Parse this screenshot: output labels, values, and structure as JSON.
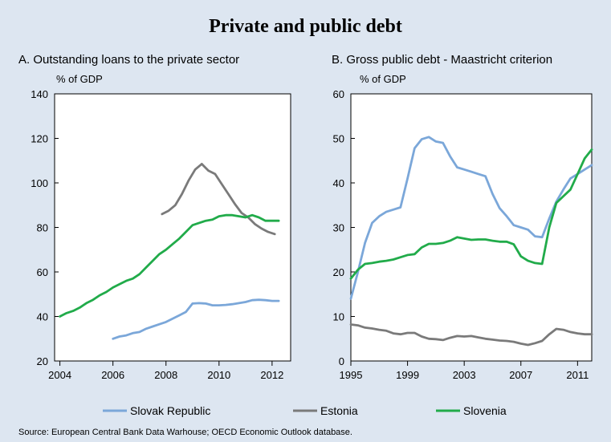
{
  "title": "Private and public debt",
  "source": "Source: European Central Bank Data Warhouse; OECD Economic Outlook database.",
  "colors": {
    "background": "#dde6f1",
    "slovak": "#7ba7d9",
    "estonia": "#7a7a7a",
    "slovenia": "#21ab4a"
  },
  "legend": [
    {
      "label": "Slovak Republic",
      "color": "#7ba7d9"
    },
    {
      "label": "Estonia",
      "color": "#7a7a7a"
    },
    {
      "label": "Slovenia",
      "color": "#21ab4a"
    }
  ],
  "chart_data": [
    {
      "type": "line",
      "title": "A. Outstanding loans to the private sector",
      "ylabel": "% of GDP",
      "xlim": [
        2003.8,
        2012.7
      ],
      "ylim": [
        20,
        140
      ],
      "xticks": [
        2004,
        2006,
        2008,
        2010,
        2012
      ],
      "yticks": [
        20,
        40,
        60,
        80,
        100,
        120,
        140
      ],
      "series": [
        {
          "name": "Slovak Republic",
          "color": "#7ba7d9",
          "points": [
            [
              2006.0,
              30.0
            ],
            [
              2006.25,
              31.0
            ],
            [
              2006.5,
              31.5
            ],
            [
              2006.75,
              32.5
            ],
            [
              2007.0,
              33.0
            ],
            [
              2007.25,
              34.5
            ],
            [
              2007.5,
              35.5
            ],
            [
              2007.75,
              36.5
            ],
            [
              2008.0,
              37.5
            ],
            [
              2008.25,
              39.0
            ],
            [
              2008.5,
              40.5
            ],
            [
              2008.75,
              42.0
            ],
            [
              2009.0,
              45.8
            ],
            [
              2009.25,
              46.0
            ],
            [
              2009.5,
              45.8
            ],
            [
              2009.75,
              45.0
            ],
            [
              2010.0,
              45.0
            ],
            [
              2010.25,
              45.2
            ],
            [
              2010.5,
              45.5
            ],
            [
              2010.75,
              46.0
            ],
            [
              2011.0,
              46.5
            ],
            [
              2011.25,
              47.3
            ],
            [
              2011.5,
              47.5
            ],
            [
              2011.75,
              47.3
            ],
            [
              2012.0,
              47.0
            ],
            [
              2012.25,
              47.0
            ]
          ]
        },
        {
          "name": "Estonia",
          "color": "#7a7a7a",
          "points": [
            [
              2007.85,
              86.0
            ],
            [
              2008.1,
              87.5
            ],
            [
              2008.35,
              90.0
            ],
            [
              2008.6,
              95.0
            ],
            [
              2008.85,
              101.0
            ],
            [
              2009.1,
              106.0
            ],
            [
              2009.35,
              108.5
            ],
            [
              2009.6,
              105.5
            ],
            [
              2009.85,
              104.0
            ],
            [
              2010.1,
              99.5
            ],
            [
              2010.35,
              95.0
            ],
            [
              2010.6,
              90.5
            ],
            [
              2010.85,
              86.5
            ],
            [
              2011.1,
              84.5
            ],
            [
              2011.35,
              81.5
            ],
            [
              2011.6,
              79.5
            ],
            [
              2011.85,
              78.0
            ],
            [
              2012.1,
              77.0
            ]
          ]
        },
        {
          "name": "Slovenia",
          "color": "#21ab4a",
          "points": [
            [
              2004.0,
              40.0
            ],
            [
              2004.25,
              41.5
            ],
            [
              2004.5,
              42.5
            ],
            [
              2004.75,
              44.0
            ],
            [
              2005.0,
              46.0
            ],
            [
              2005.25,
              47.5
            ],
            [
              2005.5,
              49.5
            ],
            [
              2005.75,
              51.0
            ],
            [
              2006.0,
              53.0
            ],
            [
              2006.25,
              54.5
            ],
            [
              2006.5,
              56.0
            ],
            [
              2006.75,
              57.0
            ],
            [
              2007.0,
              59.0
            ],
            [
              2007.25,
              62.0
            ],
            [
              2007.5,
              65.0
            ],
            [
              2007.75,
              68.0
            ],
            [
              2008.0,
              70.0
            ],
            [
              2008.25,
              72.5
            ],
            [
              2008.5,
              75.0
            ],
            [
              2008.75,
              78.0
            ],
            [
              2009.0,
              81.0
            ],
            [
              2009.25,
              82.0
            ],
            [
              2009.5,
              83.0
            ],
            [
              2009.75,
              83.5
            ],
            [
              2010.0,
              85.0
            ],
            [
              2010.25,
              85.5
            ],
            [
              2010.5,
              85.5
            ],
            [
              2010.75,
              85.0
            ],
            [
              2011.0,
              84.5
            ],
            [
              2011.25,
              85.5
            ],
            [
              2011.5,
              84.5
            ],
            [
              2011.75,
              83.0
            ],
            [
              2012.0,
              83.0
            ],
            [
              2012.25,
              83.0
            ]
          ]
        }
      ]
    },
    {
      "type": "line",
      "title": "B. Gross public debt - Maastricht criterion",
      "ylabel": "% of GDP",
      "xlim": [
        1995,
        2012
      ],
      "ylim": [
        0,
        60
      ],
      "xticks": [
        1995,
        1999,
        2003,
        2007,
        2011
      ],
      "yticks": [
        0,
        10,
        20,
        30,
        40,
        50,
        60
      ],
      "series": [
        {
          "name": "Slovak Republic",
          "color": "#7ba7d9",
          "points": [
            [
              1995.0,
              14.0
            ],
            [
              1995.5,
              20.0
            ],
            [
              1996.0,
              26.5
            ],
            [
              1996.5,
              31.0
            ],
            [
              1997.0,
              32.5
            ],
            [
              1997.5,
              33.5
            ],
            [
              1998.0,
              34.0
            ],
            [
              1998.5,
              34.5
            ],
            [
              1999.0,
              41.0
            ],
            [
              1999.5,
              47.8
            ],
            [
              2000.0,
              49.8
            ],
            [
              2000.5,
              50.3
            ],
            [
              2001.0,
              49.3
            ],
            [
              2001.5,
              49.0
            ],
            [
              2002.0,
              46.0
            ],
            [
              2002.5,
              43.5
            ],
            [
              2003.0,
              43.0
            ],
            [
              2003.5,
              42.5
            ],
            [
              2004.0,
              42.0
            ],
            [
              2004.5,
              41.5
            ],
            [
              2005.0,
              37.5
            ],
            [
              2005.5,
              34.3
            ],
            [
              2006.0,
              32.5
            ],
            [
              2006.5,
              30.5
            ],
            [
              2007.0,
              30.0
            ],
            [
              2007.5,
              29.5
            ],
            [
              2008.0,
              28.0
            ],
            [
              2008.5,
              27.8
            ],
            [
              2009.0,
              32.0
            ],
            [
              2009.5,
              35.8
            ],
            [
              2010.0,
              38.5
            ],
            [
              2010.5,
              41.0
            ],
            [
              2011.0,
              42.0
            ],
            [
              2011.5,
              43.0
            ],
            [
              2012.0,
              44.0
            ]
          ]
        },
        {
          "name": "Estonia",
          "color": "#7a7a7a",
          "points": [
            [
              1995.0,
              8.2
            ],
            [
              1995.5,
              8.0
            ],
            [
              1996.0,
              7.5
            ],
            [
              1996.5,
              7.3
            ],
            [
              1997.0,
              7.0
            ],
            [
              1997.5,
              6.8
            ],
            [
              1998.0,
              6.2
            ],
            [
              1998.5,
              6.0
            ],
            [
              1999.0,
              6.3
            ],
            [
              1999.5,
              6.3
            ],
            [
              2000.0,
              5.5
            ],
            [
              2000.5,
              5.0
            ],
            [
              2001.0,
              4.9
            ],
            [
              2001.5,
              4.7
            ],
            [
              2002.0,
              5.2
            ],
            [
              2002.5,
              5.6
            ],
            [
              2003.0,
              5.5
            ],
            [
              2003.5,
              5.6
            ],
            [
              2004.0,
              5.3
            ],
            [
              2004.5,
              5.0
            ],
            [
              2005.0,
              4.8
            ],
            [
              2005.5,
              4.6
            ],
            [
              2006.0,
              4.5
            ],
            [
              2006.5,
              4.3
            ],
            [
              2007.0,
              3.9
            ],
            [
              2007.5,
              3.6
            ],
            [
              2008.0,
              4.0
            ],
            [
              2008.5,
              4.5
            ],
            [
              2009.0,
              6.0
            ],
            [
              2009.5,
              7.2
            ],
            [
              2010.0,
              7.0
            ],
            [
              2010.5,
              6.5
            ],
            [
              2011.0,
              6.2
            ],
            [
              2011.5,
              6.0
            ],
            [
              2012.0,
              6.0
            ]
          ]
        },
        {
          "name": "Slovenia",
          "color": "#21ab4a",
          "points": [
            [
              1995.0,
              18.5
            ],
            [
              1995.5,
              20.5
            ],
            [
              1996.0,
              21.8
            ],
            [
              1996.5,
              22.0
            ],
            [
              1997.0,
              22.3
            ],
            [
              1997.5,
              22.5
            ],
            [
              1998.0,
              22.8
            ],
            [
              1998.5,
              23.3
            ],
            [
              1999.0,
              23.8
            ],
            [
              1999.5,
              24.0
            ],
            [
              2000.0,
              25.5
            ],
            [
              2000.5,
              26.3
            ],
            [
              2001.0,
              26.3
            ],
            [
              2001.5,
              26.5
            ],
            [
              2002.0,
              27.0
            ],
            [
              2002.5,
              27.8
            ],
            [
              2003.0,
              27.5
            ],
            [
              2003.5,
              27.2
            ],
            [
              2004.0,
              27.3
            ],
            [
              2004.5,
              27.3
            ],
            [
              2005.0,
              27.0
            ],
            [
              2005.5,
              26.8
            ],
            [
              2006.0,
              26.8
            ],
            [
              2006.5,
              26.2
            ],
            [
              2007.0,
              23.5
            ],
            [
              2007.5,
              22.5
            ],
            [
              2008.0,
              22.0
            ],
            [
              2008.5,
              21.8
            ],
            [
              2009.0,
              30.0
            ],
            [
              2009.5,
              35.5
            ],
            [
              2010.0,
              37.0
            ],
            [
              2010.5,
              38.5
            ],
            [
              2011.0,
              42.0
            ],
            [
              2011.5,
              45.5
            ],
            [
              2012.0,
              47.5
            ]
          ]
        }
      ]
    }
  ]
}
